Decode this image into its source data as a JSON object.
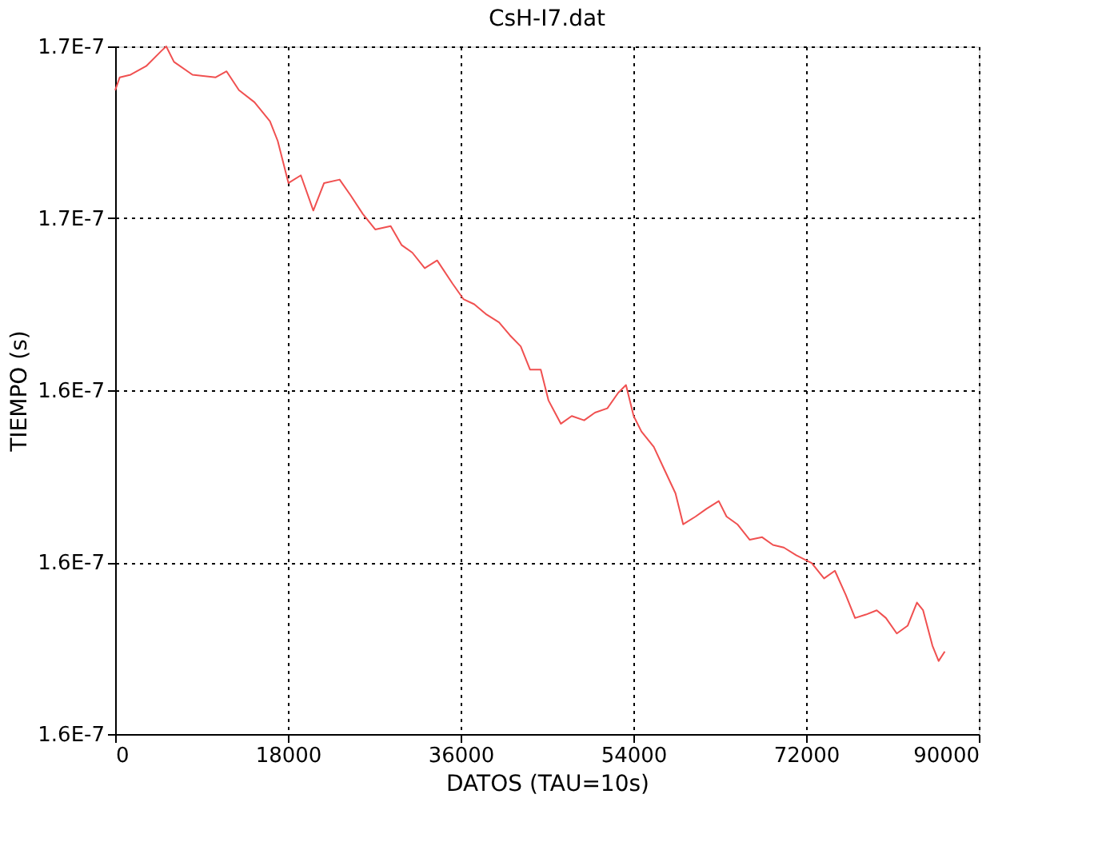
{
  "chart_data": {
    "type": "line",
    "title": "CsH-I7.dat",
    "xlabel": "DATOS (TAU=10s)",
    "ylabel": "TIEMPO (s)",
    "x": [
      0,
      480,
      1610,
      3230,
      4840,
      5320,
      6130,
      8060,
      10480,
      11610,
      12900,
      14520,
      16130,
      16940,
      18060,
      19350,
      20650,
      21770,
      23390,
      24520,
      25810,
      27100,
      28710,
      29840,
      30970,
      32260,
      33550,
      35160,
      36290,
      37420,
      38710,
      40000,
      41130,
      42260,
      43230,
      44350,
      45160,
      46450,
      47580,
      48870,
      50000,
      51290,
      52420,
      53230,
      54030,
      54840,
      56130,
      57260,
      58390,
      59190,
      60480,
      61610,
      62900,
      63710,
      64840,
      66130,
      67420,
      68550,
      69680,
      70970,
      72580,
      73870,
      75000,
      76130,
      77100,
      78230,
      79360,
      80320,
      81450,
      82580,
      83550,
      84190,
      85160,
      85810,
      86450
    ],
    "series": [
      {
        "color": "#f05050",
        "values": [
          1.6749e-07,
          1.6764e-07,
          1.6767e-07,
          1.6777e-07,
          1.6795e-07,
          1.68e-07,
          1.6782e-07,
          1.6767e-07,
          1.6764e-07,
          1.6771e-07,
          1.6749e-07,
          1.6735e-07,
          1.6713e-07,
          1.669e-07,
          1.6641e-07,
          1.665e-07,
          1.6609e-07,
          1.6641e-07,
          1.6645e-07,
          1.6627e-07,
          1.6605e-07,
          1.6587e-07,
          1.6591e-07,
          1.6569e-07,
          1.656e-07,
          1.6542e-07,
          1.6551e-07,
          1.6524e-07,
          1.6506e-07,
          1.65e-07,
          1.6488e-07,
          1.6479e-07,
          1.6464e-07,
          1.6451e-07,
          1.6424e-07,
          1.6424e-07,
          1.6388e-07,
          1.6361e-07,
          1.637e-07,
          1.6365e-07,
          1.6374e-07,
          1.6379e-07,
          1.6397e-07,
          1.6406e-07,
          1.637e-07,
          1.6352e-07,
          1.6334e-07,
          1.6307e-07,
          1.628e-07,
          1.6244e-07,
          1.6253e-07,
          1.6262e-07,
          1.6271e-07,
          1.6253e-07,
          1.6244e-07,
          1.6226e-07,
          1.6229e-07,
          1.622e-07,
          1.6217e-07,
          1.6208e-07,
          1.6199e-07,
          1.6181e-07,
          1.619e-07,
          1.6162e-07,
          1.6135e-07,
          1.6139e-07,
          1.6144e-07,
          1.6135e-07,
          1.6117e-07,
          1.6126e-07,
          1.6153e-07,
          1.6144e-07,
          1.6103e-07,
          1.6085e-07,
          1.6096e-07
        ]
      }
    ],
    "xlim": [
      0,
      90000
    ],
    "xticks": [
      0,
      18000,
      36000,
      54000,
      72000,
      90000
    ],
    "ylim": [
      1.6e-07,
      1.68e-07
    ],
    "yticks": [
      {
        "value": 1.6e-07,
        "label": "1.6E-7"
      },
      {
        "value": 1.62e-07,
        "label": "1.6E-7"
      },
      {
        "value": 1.64e-07,
        "label": "1.6E-7"
      },
      {
        "value": 1.66e-07,
        "label": "1.7E-7"
      },
      {
        "value": 1.68e-07,
        "label": "1.7E-7"
      }
    ],
    "grid": true,
    "line_style": "solid",
    "marker": "none"
  }
}
